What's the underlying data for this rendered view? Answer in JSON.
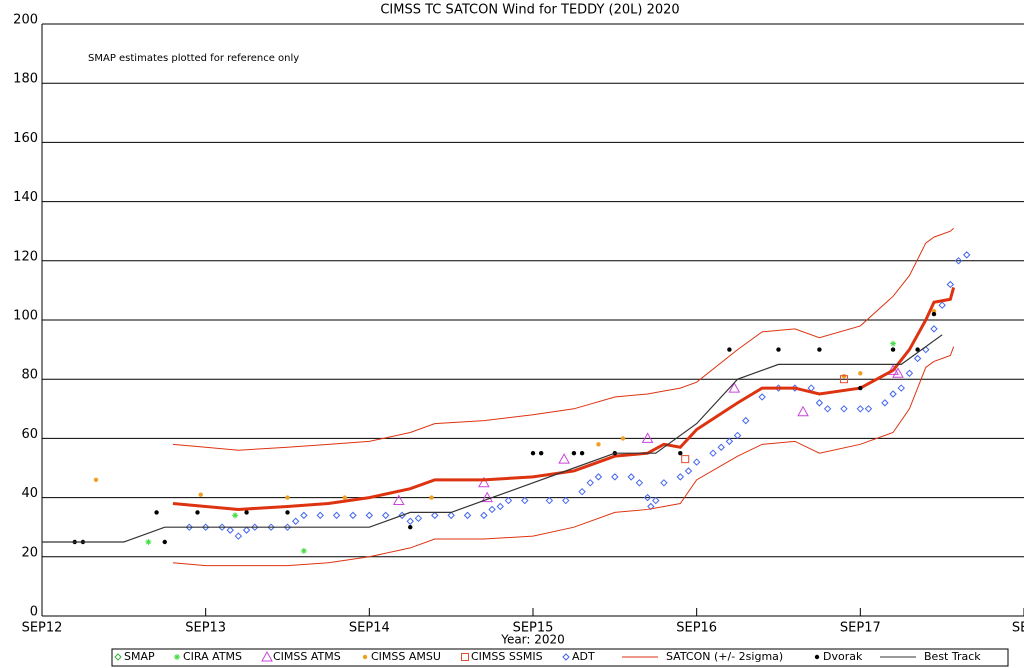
{
  "chart_data": {
    "type": "scatter",
    "title": "CIMSS TC SATCON Wind for TEDDY (20L) 2020",
    "annotation": "SMAP estimates plotted for reference only",
    "x_label": "Year: 2020",
    "xlim": [
      12,
      18
    ],
    "xticks": [
      {
        "value": 12,
        "label": "SEP12"
      },
      {
        "value": 13,
        "label": "SEP13"
      },
      {
        "value": 14,
        "label": "SEP14"
      },
      {
        "value": 15,
        "label": "SEP15"
      },
      {
        "value": 16,
        "label": "SEP16"
      },
      {
        "value": 17,
        "label": "SEP17"
      },
      {
        "value": 18,
        "label": "SEP"
      }
    ],
    "ylim": [
      0,
      200
    ],
    "yticks": [
      0,
      20,
      40,
      60,
      80,
      100,
      120,
      140,
      160,
      180,
      200
    ],
    "grid": true,
    "legend": "bottom",
    "series": [
      {
        "name": "SMAP",
        "color": "#3cb043",
        "marker": "diamond",
        "x": [],
        "values": []
      },
      {
        "name": "CIRA ATMS",
        "color": "#44dd44",
        "marker": "asterisk",
        "x": [
          12.65,
          13.18,
          13.6,
          17.2
        ],
        "values": [
          25,
          34,
          22,
          92
        ]
      },
      {
        "name": "CIMSS ATMS",
        "color": "#cc44dd",
        "marker": "triangle",
        "x": [
          14.18,
          14.7,
          14.72,
          15.19,
          15.7,
          16.23,
          16.65,
          17.2,
          17.23
        ],
        "values": [
          39,
          45,
          40,
          53,
          60,
          77,
          69,
          83,
          82
        ]
      },
      {
        "name": "CIMSS AMSU",
        "color": "#f0a020",
        "marker": "dot",
        "x": [
          12.33,
          12.97,
          13.5,
          13.85,
          14.38,
          15.4,
          15.55,
          16.9,
          17.0,
          17.45
        ],
        "values": [
          46,
          41,
          40,
          40,
          40,
          58,
          60,
          81,
          82,
          103
        ]
      },
      {
        "name": "CIMSS SSMIS",
        "color": "#e05030",
        "marker": "square",
        "x": [
          15.93,
          16.9
        ],
        "values": [
          53,
          80
        ]
      },
      {
        "name": "ADT",
        "color": "#4466ee",
        "marker": "diamond",
        "x": [
          12.9,
          13.0,
          13.1,
          13.15,
          13.2,
          13.25,
          13.3,
          13.4,
          13.5,
          13.55,
          13.6,
          13.7,
          13.8,
          13.9,
          14.0,
          14.1,
          14.2,
          14.25,
          14.3,
          14.4,
          14.5,
          14.6,
          14.7,
          14.75,
          14.8,
          14.85,
          14.95,
          15.1,
          15.2,
          15.3,
          15.35,
          15.4,
          15.5,
          15.6,
          15.65,
          15.7,
          15.72,
          15.75,
          15.8,
          15.9,
          15.95,
          16.0,
          16.1,
          16.15,
          16.2,
          16.25,
          16.3,
          16.4,
          16.5,
          16.6,
          16.7,
          16.75,
          16.8,
          16.9,
          17.0,
          17.05,
          17.15,
          17.2,
          17.25,
          17.3,
          17.35,
          17.4,
          17.45,
          17.5,
          17.55,
          17.6,
          17.65
        ],
        "values": [
          30,
          30,
          30,
          29,
          27,
          29,
          30,
          30,
          30,
          32,
          34,
          34,
          34,
          34,
          34,
          34,
          34,
          32,
          33,
          34,
          34,
          34,
          34,
          36,
          37,
          39,
          39,
          39,
          39,
          42,
          45,
          47,
          47,
          47,
          45,
          40,
          37,
          39,
          45,
          47,
          49,
          52,
          55,
          57,
          59,
          61,
          66,
          74,
          77,
          77,
          77,
          72,
          70,
          70,
          70,
          70,
          72,
          75,
          77,
          82,
          87,
          90,
          97,
          105,
          112,
          120,
          122
        ]
      },
      {
        "name": "SATCON (+/- 2sigma)",
        "color": "#dd3311",
        "marker": "band",
        "x": [
          12.8,
          13.0,
          13.2,
          13.5,
          13.75,
          14.0,
          14.25,
          14.4,
          14.7,
          15.0,
          15.25,
          15.5,
          15.7,
          15.8,
          15.9,
          16.0,
          16.25,
          16.4,
          16.6,
          16.75,
          17.0,
          17.2,
          17.3,
          17.4,
          17.45,
          17.55,
          17.57
        ],
        "values": [
          38,
          37,
          36,
          37,
          38,
          40,
          43,
          46,
          46,
          47,
          49,
          54,
          55,
          58,
          57,
          63,
          72,
          77,
          77,
          75,
          77,
          83,
          90,
          100,
          106,
          107,
          111
        ],
        "upper": [
          58,
          57,
          56,
          57,
          58,
          59,
          62,
          65,
          66,
          68,
          70,
          74,
          75,
          76,
          77,
          79,
          90,
          96,
          97,
          94,
          98,
          108,
          115,
          126,
          128,
          130,
          131
        ],
        "lower": [
          18,
          17,
          17,
          17,
          18,
          20,
          23,
          26,
          26,
          27,
          30,
          35,
          36,
          37,
          38,
          46,
          54,
          58,
          59,
          55,
          58,
          62,
          70,
          84,
          86,
          88,
          91
        ]
      },
      {
        "name": "Dvorak",
        "color": "#000000",
        "marker": "dot",
        "x": [
          12.2,
          12.25,
          12.7,
          12.75,
          12.95,
          13.25,
          13.5,
          14.25,
          15.0,
          15.05,
          15.25,
          15.3,
          15.5,
          15.9,
          16.2,
          16.5,
          16.75,
          17.0,
          17.2,
          17.35,
          17.45
        ],
        "values": [
          25,
          25,
          35,
          25,
          35,
          35,
          35,
          30,
          55,
          55,
          55,
          55,
          55,
          55,
          90,
          90,
          90,
          77,
          90,
          90,
          102
        ]
      },
      {
        "name": "Best Track",
        "color": "#333333",
        "marker": "line",
        "x": [
          12.0,
          12.25,
          12.5,
          12.75,
          13.0,
          13.25,
          13.5,
          13.75,
          14.0,
          14.25,
          14.5,
          14.75,
          15.0,
          15.25,
          15.5,
          15.75,
          16.0,
          16.25,
          16.5,
          16.75,
          17.0,
          17.25,
          17.5
        ],
        "values": [
          25,
          25,
          25,
          30,
          30,
          30,
          30,
          30,
          30,
          35,
          35,
          40,
          45,
          50,
          55,
          55,
          65,
          80,
          85,
          85,
          85,
          85,
          95
        ]
      }
    ]
  }
}
